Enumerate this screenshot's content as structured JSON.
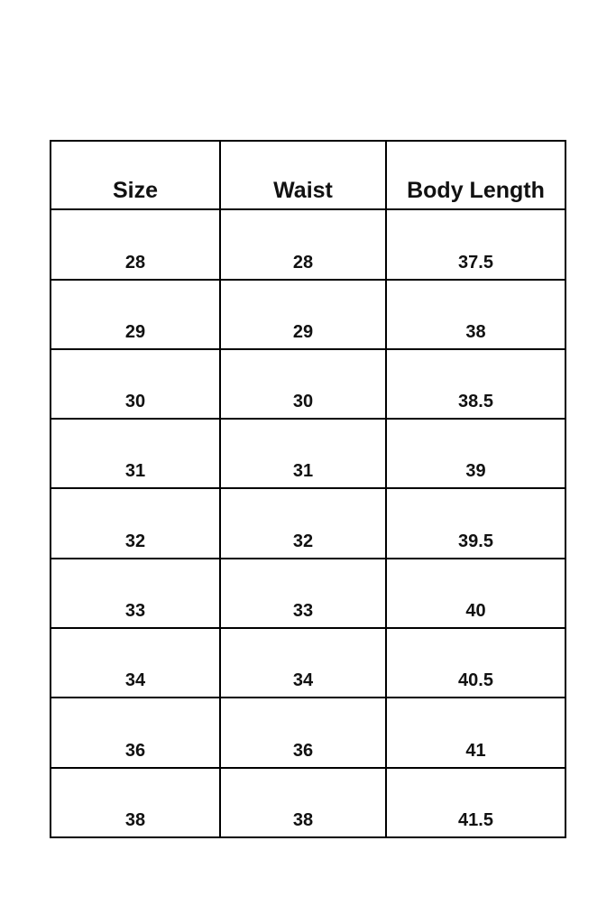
{
  "table": {
    "headers": [
      "Size",
      "Waist",
      "Body Length"
    ],
    "rows": [
      [
        "28",
        "28",
        "37.5"
      ],
      [
        "29",
        "29",
        "38"
      ],
      [
        "30",
        "30",
        "38.5"
      ],
      [
        "31",
        "31",
        "39"
      ],
      [
        "32",
        "32",
        "39.5"
      ],
      [
        "33",
        "33",
        "40"
      ],
      [
        "34",
        "34",
        "40.5"
      ],
      [
        "36",
        "36",
        "41"
      ],
      [
        "38",
        "38",
        "41.5"
      ]
    ]
  }
}
